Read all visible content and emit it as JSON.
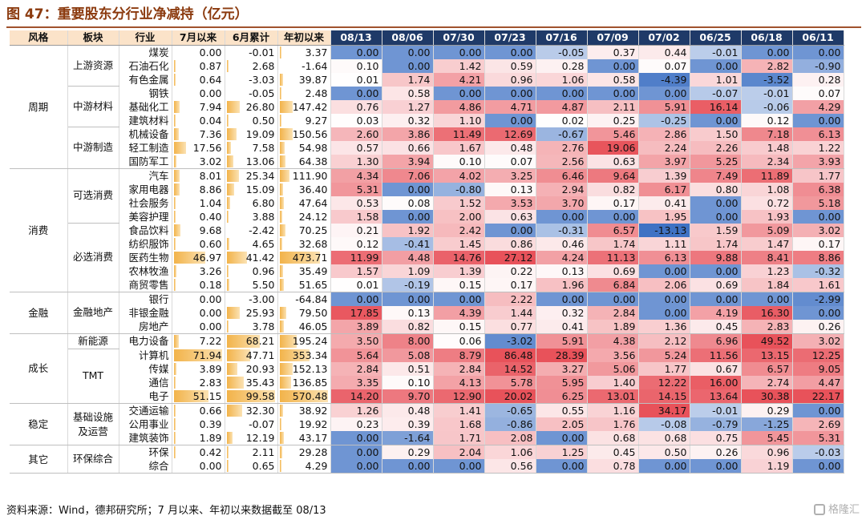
{
  "title": "图 47：重要股东分行业净减持（亿元）",
  "headers": [
    "风格",
    "板块",
    "行业",
    "7月以来",
    "6月累计",
    "年初以来",
    "08/13",
    "08/06",
    "07/30",
    "07/23",
    "07/16",
    "07/09",
    "07/02",
    "06/25",
    "06/18",
    "06/11"
  ],
  "rows": [
    {
      "ind": "煤炭",
      "m7": "0.00",
      "m6": "-0.01",
      "ytd": "3.37",
      "w": [
        "0.00",
        "0.00",
        "0.00",
        "0.00",
        "-0.05",
        "0.37",
        "0.44",
        "-0.01",
        "0.00",
        "0.00"
      ]
    },
    {
      "ind": "石油石化",
      "m7": "0.87",
      "m6": "2.68",
      "ytd": "-1.64",
      "w": [
        "0.10",
        "0.00",
        "1.42",
        "0.59",
        "0.28",
        "0.00",
        "0.07",
        "0.00",
        "2.82",
        "-0.90"
      ]
    },
    {
      "ind": "有色金属",
      "m7": "0.64",
      "m6": "-3.03",
      "ytd": "39.87",
      "w": [
        "0.01",
        "1.74",
        "4.21",
        "0.96",
        "1.06",
        "0.58",
        "-4.39",
        "1.01",
        "-3.52",
        "0.28"
      ]
    },
    {
      "ind": "钢铁",
      "m7": "0.00",
      "m6": "-0.05",
      "ytd": "2.48",
      "w": [
        "0.00",
        "0.58",
        "0.00",
        "0.00",
        "0.00",
        "0.00",
        "0.00",
        "-0.07",
        "-0.01",
        "0.07"
      ]
    },
    {
      "ind": "基础化工",
      "m7": "7.94",
      "m6": "26.80",
      "ytd": "147.42",
      "w": [
        "0.76",
        "1.27",
        "4.86",
        "4.71",
        "4.87",
        "2.11",
        "5.91",
        "16.14",
        "-0.06",
        "4.29"
      ]
    },
    {
      "ind": "建筑材料",
      "m7": "0.04",
      "m6": "0.50",
      "ytd": "9.27",
      "w": [
        "0.03",
        "0.32",
        "1.10",
        "0.00",
        "0.02",
        "0.25",
        "-0.25",
        "0.00",
        "0.12",
        "0.00"
      ]
    },
    {
      "ind": "机械设备",
      "m7": "7.36",
      "m6": "19.09",
      "ytd": "150.56",
      "w": [
        "2.60",
        "3.86",
        "11.49",
        "12.69",
        "-0.67",
        "5.46",
        "2.86",
        "1.50",
        "7.18",
        "6.13"
      ]
    },
    {
      "ind": "轻工制造",
      "m7": "17.56",
      "m6": "7.58",
      "ytd": "54.98",
      "w": [
        "0.57",
        "0.66",
        "1.67",
        "0.48",
        "2.76",
        "19.06",
        "2.24",
        "2.26",
        "1.48",
        "1.22"
      ]
    },
    {
      "ind": "国防军工",
      "m7": "3.02",
      "m6": "13.06",
      "ytd": "64.38",
      "w": [
        "1.30",
        "3.94",
        "0.10",
        "0.07",
        "2.56",
        "0.63",
        "3.97",
        "5.25",
        "2.34",
        "3.93"
      ]
    },
    {
      "ind": "汽车",
      "m7": "8.01",
      "m6": "25.34",
      "ytd": "111.90",
      "w": [
        "4.34",
        "7.06",
        "4.02",
        "3.25",
        "6.46",
        "9.64",
        "1.39",
        "7.49",
        "11.89",
        "1.77"
      ]
    },
    {
      "ind": "家用电器",
      "m7": "8.86",
      "m6": "15.09",
      "ytd": "36.40",
      "w": [
        "5.31",
        "0.00",
        "-0.80",
        "0.13",
        "2.94",
        "0.82",
        "6.17",
        "0.80",
        "1.08",
        "6.38"
      ]
    },
    {
      "ind": "社会服务",
      "m7": "1.04",
      "m6": "6.80",
      "ytd": "47.64",
      "w": [
        "0.53",
        "0.08",
        "1.52",
        "3.53",
        "3.70",
        "0.17",
        "0.41",
        "0.00",
        "0.72",
        "5.18"
      ]
    },
    {
      "ind": "美容护理",
      "m7": "0.40",
      "m6": "3.88",
      "ytd": "24.12",
      "w": [
        "1.58",
        "0.00",
        "2.00",
        "0.63",
        "0.00",
        "0.00",
        "1.95",
        "0.00",
        "1.93",
        "0.00"
      ]
    },
    {
      "ind": "食品饮料",
      "m7": "9.68",
      "m6": "-2.42",
      "ytd": "70.25",
      "w": [
        "0.21",
        "1.92",
        "2.42",
        "0.00",
        "-0.31",
        "6.57",
        "-13.13",
        "1.59",
        "5.09",
        "3.02"
      ]
    },
    {
      "ind": "纺织服饰",
      "m7": "0.60",
      "m6": "4.65",
      "ytd": "32.68",
      "w": [
        "0.12",
        "-0.41",
        "1.45",
        "0.86",
        "0.46",
        "1.74",
        "1.11",
        "1.74",
        "1.47",
        "0.17"
      ]
    },
    {
      "ind": "医药生物",
      "m7": "46.97",
      "m6": "41.42",
      "ytd": "473.71",
      "w": [
        "11.99",
        "4.48",
        "14.76",
        "27.12",
        "4.24",
        "11.13",
        "6.13",
        "9.88",
        "8.41",
        "8.86"
      ]
    },
    {
      "ind": "农林牧渔",
      "m7": "3.26",
      "m6": "0.96",
      "ytd": "35.49",
      "w": [
        "1.57",
        "1.09",
        "1.39",
        "0.22",
        "0.13",
        "0.69",
        "0.00",
        "0.00",
        "1.23",
        "-0.32"
      ]
    },
    {
      "ind": "商贸零售",
      "m7": "0.18",
      "m6": "5.50",
      "ytd": "51.65",
      "w": [
        "0.01",
        "-0.19",
        "0.15",
        "0.17",
        "1.96",
        "6.84",
        "2.06",
        "0.69",
        "1.84",
        "1.61"
      ]
    },
    {
      "ind": "银行",
      "m7": "0.00",
      "m6": "-3.00",
      "ytd": "-64.84",
      "w": [
        "0.00",
        "0.00",
        "0.00",
        "2.22",
        "0.00",
        "0.00",
        "0.00",
        "0.00",
        "0.00",
        "-2.99"
      ]
    },
    {
      "ind": "非银金融",
      "m7": "0.00",
      "m6": "25.93",
      "ytd": "79.50",
      "w": [
        "17.85",
        "0.13",
        "4.39",
        "1.44",
        "0.32",
        "2.84",
        "0.00",
        "4.19",
        "16.30",
        "0.00"
      ]
    },
    {
      "ind": "房地产",
      "m7": "0.00",
      "m6": "3.78",
      "ytd": "46.05",
      "w": [
        "3.89",
        "0.82",
        "0.15",
        "0.77",
        "0.41",
        "1.89",
        "1.36",
        "0.45",
        "2.83",
        "0.26"
      ]
    },
    {
      "ind": "电力设备",
      "m7": "7.22",
      "m6": "68.21",
      "ytd": "195.24",
      "w": [
        "3.50",
        "8.00",
        "0.06",
        "-3.02",
        "5.91",
        "4.38",
        "2.12",
        "6.96",
        "49.52",
        "3.02"
      ]
    },
    {
      "ind": "计算机",
      "m7": "71.94",
      "m6": "47.71",
      "ytd": "353.34",
      "w": [
        "5.64",
        "5.08",
        "8.79",
        "86.48",
        "28.39",
        "3.56",
        "5.24",
        "11.56",
        "13.15",
        "12.25"
      ]
    },
    {
      "ind": "传媒",
      "m7": "3.89",
      "m6": "20.93",
      "ytd": "152.13",
      "w": [
        "2.84",
        "0.51",
        "2.84",
        "14.52",
        "3.27",
        "5.06",
        "1.77",
        "0.67",
        "6.57",
        "9.05"
      ]
    },
    {
      "ind": "通信",
      "m7": "2.83",
      "m6": "35.43",
      "ytd": "136.85",
      "w": [
        "3.35",
        "0.10",
        "4.13",
        "5.78",
        "5.95",
        "1.40",
        "12.22",
        "16.00",
        "2.74",
        "4.47"
      ]
    },
    {
      "ind": "电子",
      "m7": "51.15",
      "m6": "99.58",
      "ytd": "570.48",
      "w": [
        "14.20",
        "9.70",
        "12.90",
        "20.02",
        "6.25",
        "13.01",
        "14.15",
        "13.64",
        "30.38",
        "22.17"
      ]
    },
    {
      "ind": "交通运输",
      "m7": "0.66",
      "m6": "32.30",
      "ytd": "38.92",
      "w": [
        "1.26",
        "0.48",
        "1.41",
        "-0.65",
        "0.55",
        "1.16",
        "34.17",
        "-0.01",
        "0.29",
        "0.00"
      ]
    },
    {
      "ind": "公用事业",
      "m7": "0.39",
      "m6": "-0.07",
      "ytd": "19.92",
      "w": [
        "0.23",
        "0.39",
        "1.68",
        "-0.86",
        "2.05",
        "1.76",
        "-0.08",
        "-0.79",
        "-1.25",
        "2.69"
      ]
    },
    {
      "ind": "建筑装饰",
      "m7": "1.89",
      "m6": "12.19",
      "ytd": "43.17",
      "w": [
        "0.00",
        "-1.64",
        "1.71",
        "2.08",
        "0.00",
        "0.68",
        "0.68",
        "0.75",
        "5.45",
        "5.31"
      ]
    },
    {
      "ind": "环保",
      "m7": "0.42",
      "m6": "2.11",
      "ytd": "29.28",
      "w": [
        "0.00",
        "0.29",
        "2.04",
        "1.06",
        "1.25",
        "0.45",
        "0.50",
        "0.26",
        "0.96",
        "-0.03"
      ]
    },
    {
      "ind": "综合",
      "m7": "0.00",
      "m6": "0.65",
      "ytd": "4.29",
      "w": [
        "0.00",
        "0.00",
        "0.00",
        "0.56",
        "0.00",
        "0.78",
        "0.00",
        "0.00",
        "1.19",
        "0.00"
      ]
    }
  ],
  "styles": [
    {
      "label": "周期",
      "start": 0,
      "span": 9
    },
    {
      "label": "消费",
      "start": 9,
      "span": 9
    },
    {
      "label": "金融",
      "start": 18,
      "span": 3
    },
    {
      "label": "成长",
      "start": 21,
      "span": 5
    },
    {
      "label": "稳定",
      "start": 26,
      "span": 3
    },
    {
      "label": "其它",
      "start": 29,
      "span": 2
    }
  ],
  "sectors": [
    {
      "label": "上游资源",
      "start": 0,
      "span": 3
    },
    {
      "label": "中游材料",
      "start": 3,
      "span": 3
    },
    {
      "label": "中游制造",
      "start": 6,
      "span": 3
    },
    {
      "label": "可选消费",
      "start": 9,
      "span": 4
    },
    {
      "label": "必选消费",
      "start": 13,
      "span": 5
    },
    {
      "label": "金融地产",
      "start": 18,
      "span": 3
    },
    {
      "label": "新能源",
      "start": 21,
      "span": 1
    },
    {
      "label": "TMT",
      "start": 22,
      "span": 4
    },
    {
      "label": "基础设施及运营",
      "start": 26,
      "span": 3
    },
    {
      "label": "环保综合",
      "start": 29,
      "span": 2
    }
  ],
  "colors": {
    "header_dark": "#1f3a68",
    "header_light": "#fbe3c9",
    "positive": "#e8525a",
    "negative": "#3f72c4",
    "bar": "#f2b34a"
  },
  "footer": "资料来源：Wind，德邦研究所；7 月以来、年初以来数据截至 08/13",
  "watermark": "格隆汇"
}
